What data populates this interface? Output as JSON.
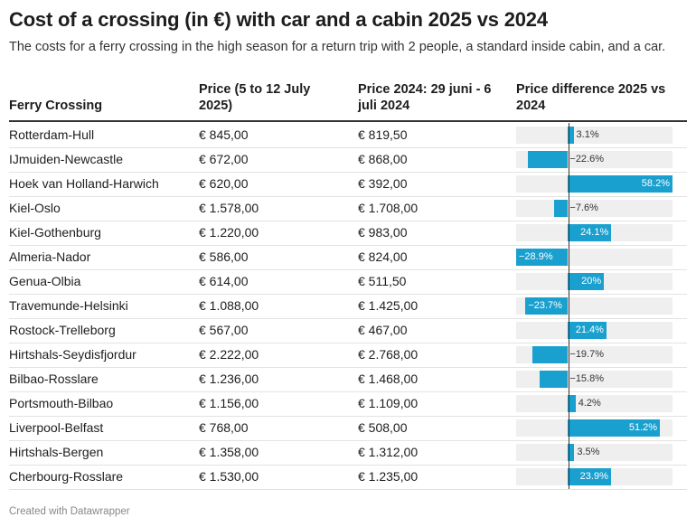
{
  "title": "Cost of a crossing (in €) with car and a cabin 2025 vs 2024",
  "subtitle": "The costs for a ferry crossing in the high season for a return trip with 2 people, a standard inside cabin, and a car.",
  "footer": "Created with Datawrapper",
  "colors": {
    "bar": "#1aa0cf",
    "bar_bg": "#efefef"
  },
  "chart_data": {
    "type": "table",
    "columns": [
      "Ferry Crossing",
      "Price (5 to 12 July 2025)",
      "Price 2024: 29 juni - 6 juli 2024",
      "Price difference 2025 vs 2024"
    ],
    "bar_range": [
      -28.9,
      58.2
    ],
    "rows": [
      {
        "crossing": "Rotterdam-Hull",
        "price2025": "€ 845,00",
        "price2024": "€ 819,50",
        "diff": 3.1,
        "diff_label": "3.1%"
      },
      {
        "crossing": "IJmuiden-Newcastle",
        "price2025": "€ 672,00",
        "price2024": "€ 868,00",
        "diff": -22.6,
        "diff_label": "−22.6%"
      },
      {
        "crossing": "Hoek van Holland-Harwich",
        "price2025": "€ 620,00",
        "price2024": "€ 392,00",
        "diff": 58.2,
        "diff_label": "58.2%"
      },
      {
        "crossing": "Kiel-Oslo",
        "price2025": "€ 1.578,00",
        "price2024": "€ 1.708,00",
        "diff": -7.6,
        "diff_label": "−7.6%"
      },
      {
        "crossing": "Kiel-Gothenburg",
        "price2025": "€ 1.220,00",
        "price2024": "€ 983,00",
        "diff": 24.1,
        "diff_label": "24.1%"
      },
      {
        "crossing": "Almeria-Nador",
        "price2025": "€ 586,00",
        "price2024": "€ 824,00",
        "diff": -28.9,
        "diff_label": "−28.9%"
      },
      {
        "crossing": "Genua-Olbia",
        "price2025": "€ 614,00",
        "price2024": "€ 511,50",
        "diff": 20,
        "diff_label": "20%"
      },
      {
        "crossing": "Travemunde-Helsinki",
        "price2025": "€ 1.088,00",
        "price2024": "€ 1.425,00",
        "diff": -23.7,
        "diff_label": "−23.7%"
      },
      {
        "crossing": "Rostock-Trelleborg",
        "price2025": "€ 567,00",
        "price2024": "€ 467,00",
        "diff": 21.4,
        "diff_label": "21.4%"
      },
      {
        "crossing": "Hirtshals-Seydisfjordur",
        "price2025": "€ 2.222,00",
        "price2024": "€ 2.768,00",
        "diff": -19.7,
        "diff_label": "−19.7%"
      },
      {
        "crossing": "Bilbao-Rosslare",
        "price2025": "€ 1.236,00",
        "price2024": "€ 1.468,00",
        "diff": -15.8,
        "diff_label": "−15.8%"
      },
      {
        "crossing": "Portsmouth-Bilbao",
        "price2025": "€ 1.156,00",
        "price2024": "€ 1.109,00",
        "diff": 4.2,
        "diff_label": "4.2%"
      },
      {
        "crossing": "Liverpool-Belfast",
        "price2025": "€ 768,00",
        "price2024": "€ 508,00",
        "diff": 51.2,
        "diff_label": "51.2%"
      },
      {
        "crossing": "Hirtshals-Bergen",
        "price2025": "€ 1.358,00",
        "price2024": "€ 1.312,00",
        "diff": 3.5,
        "diff_label": "3.5%"
      },
      {
        "crossing": "Cherbourg-Rosslare",
        "price2025": "€ 1.530,00",
        "price2024": "€ 1.235,00",
        "diff": 23.9,
        "diff_label": "23.9%"
      }
    ]
  }
}
